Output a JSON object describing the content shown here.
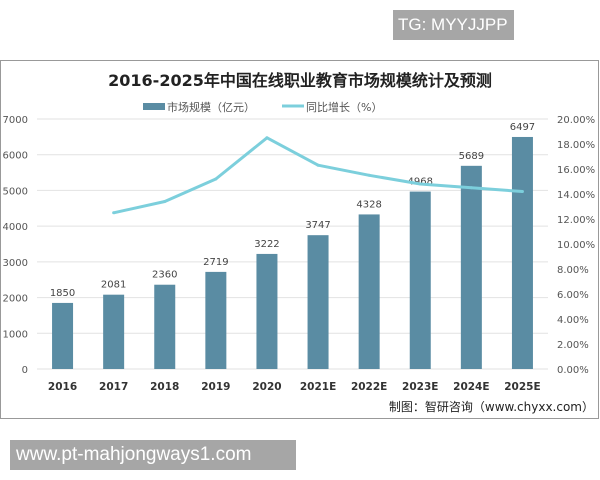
{
  "corner_label": "TG: MYYJJPP",
  "footer_banner": "www.pt-mahjongways1.com",
  "chart_data": {
    "type": "bar+line",
    "title": "2016-2025年中国在线职业教育市场规模统计及预测",
    "categories": [
      "2016",
      "2017",
      "2018",
      "2019",
      "2020",
      "2021E",
      "2022E",
      "2023E",
      "2024E",
      "2025E"
    ],
    "series": [
      {
        "name": "市场规模（亿元）",
        "type": "bar",
        "axis": "left",
        "color": "#5a8ca3",
        "values": [
          1850,
          2081,
          2360,
          2719,
          3222,
          3747,
          4328,
          4968,
          5689,
          6497
        ],
        "labels": [
          "1850",
          "2081",
          "2360",
          "2719",
          "3222",
          "3747",
          "4328",
          "4968",
          "5689",
          "6497"
        ]
      },
      {
        "name": "同比增长（%）",
        "type": "line",
        "axis": "right",
        "color": "#7ccfdc",
        "values": [
          null,
          12.5,
          13.4,
          15.2,
          18.5,
          16.3,
          15.5,
          14.8,
          14.5,
          14.2
        ]
      }
    ],
    "left_axis": {
      "range": [
        0,
        7000
      ],
      "ticks": [
        "0",
        "1000",
        "2000",
        "3000",
        "4000",
        "5000",
        "6000",
        "7000"
      ]
    },
    "right_axis": {
      "range": [
        0,
        20
      ],
      "ticks": [
        "0.00%",
        "2.00%",
        "4.00%",
        "6.00%",
        "8.00%",
        "10.00%",
        "12.00%",
        "14.00%",
        "16.00%",
        "18.00%",
        "20.00%"
      ]
    },
    "grid": true,
    "legend_position": "top",
    "source": "制图：智研咨询（www.chyxx.com）"
  }
}
